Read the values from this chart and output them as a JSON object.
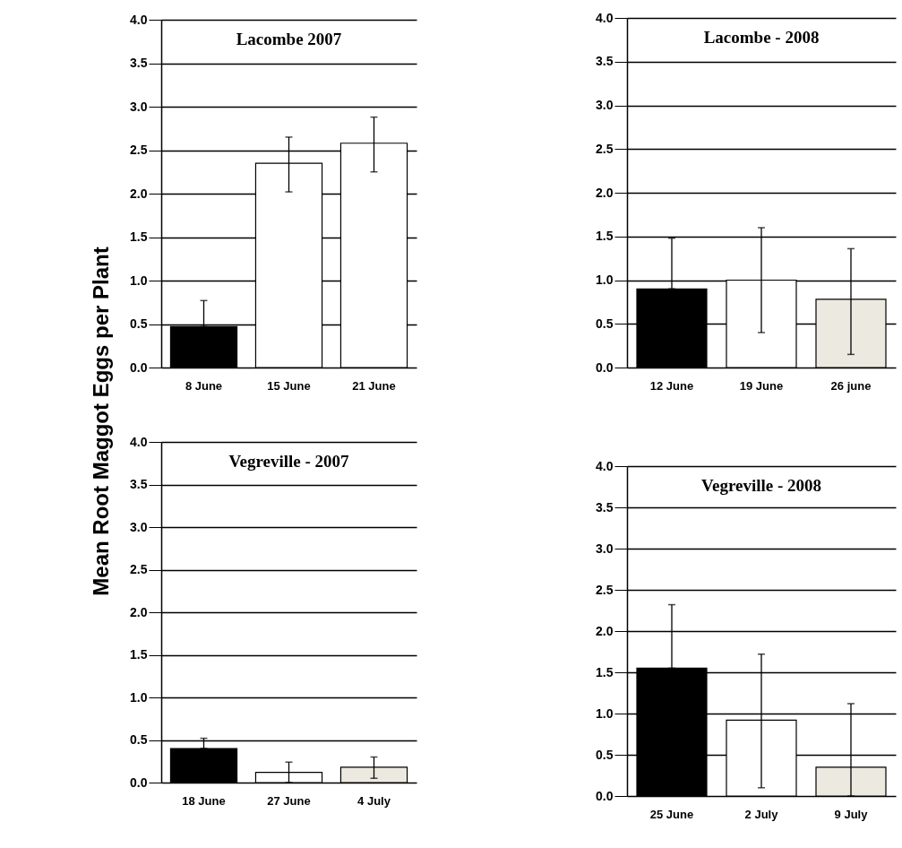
{
  "chart_data": [
    {
      "type": "bar",
      "title": "Lacombe 2007",
      "ylabel": "Mean Root Maggot Eggs per Plant",
      "categories": [
        "8 June",
        "15 June",
        "21 June"
      ],
      "values": [
        0.47,
        2.35,
        2.58
      ],
      "colors": [
        "#000000",
        "#ffffff",
        "#ffffff"
      ],
      "errors": [
        [
          0.47,
          0.77
        ],
        [
          2.02,
          2.65
        ],
        [
          2.25,
          2.88
        ]
      ],
      "ylim": [
        0,
        4
      ],
      "yticks": [
        {
          "value": 0,
          "label": "0.0"
        },
        {
          "value": 0.5,
          "label": "0.5"
        },
        {
          "value": 1,
          "label": "1.0"
        },
        {
          "value": 1.5,
          "label": "1.5"
        },
        {
          "value": 2,
          "label": "2.0"
        },
        {
          "value": 2.5,
          "label": "2.5"
        },
        {
          "value": 3,
          "label": "3.0"
        },
        {
          "value": 3.5,
          "label": "3.5"
        },
        {
          "value": 4,
          "label": "4.0"
        }
      ],
      "grid": "y"
    },
    {
      "type": "bar",
      "title": "Lacombe - 2008",
      "categories": [
        "12 June",
        "19 June",
        "26 june"
      ],
      "values": [
        0.9,
        1.0,
        0.78
      ],
      "colors": [
        "#000000",
        "#ffffff",
        "#ece9e0"
      ],
      "errors": [
        [
          0.9,
          1.48
        ],
        [
          0.4,
          1.6
        ],
        [
          0.15,
          1.36
        ]
      ],
      "ylim": [
        0,
        4
      ],
      "yticks": [
        {
          "value": 0,
          "label": "0.0"
        },
        {
          "value": 0.5,
          "label": "0.5"
        },
        {
          "value": 1,
          "label": "1.0"
        },
        {
          "value": 1.5,
          "label": "1.5"
        },
        {
          "value": 2,
          "label": "2.0"
        },
        {
          "value": 2.5,
          "label": "2.5"
        },
        {
          "value": 3,
          "label": "3.0"
        },
        {
          "value": 3.5,
          "label": "3.5"
        },
        {
          "value": 4,
          "label": "4.0"
        }
      ],
      "grid": "y"
    },
    {
      "type": "bar",
      "title": "Vegreville - 2007",
      "categories": [
        "18 June",
        "27 June",
        "4 July"
      ],
      "values": [
        0.4,
        0.12,
        0.18
      ],
      "colors": [
        "#000000",
        "#ffffff",
        "#ece9e0"
      ],
      "errors": [
        [
          0.4,
          0.52
        ],
        [
          0.0,
          0.24
        ],
        [
          0.05,
          0.3
        ]
      ],
      "ylim": [
        0,
        4
      ],
      "yticks": [
        {
          "value": 0,
          "label": "0.0"
        },
        {
          "value": 0.5,
          "label": "0.5"
        },
        {
          "value": 1,
          "label": "1.0"
        },
        {
          "value": 1.5,
          "label": "1.5"
        },
        {
          "value": 2,
          "label": "2.0"
        },
        {
          "value": 2.5,
          "label": "2.5"
        },
        {
          "value": 3,
          "label": "3.0"
        },
        {
          "value": 3.5,
          "label": "3.5"
        },
        {
          "value": 4,
          "label": "4.0"
        }
      ],
      "grid": "y"
    },
    {
      "type": "bar",
      "title": "Vegreville - 2008",
      "categories": [
        "25 June",
        "2 July",
        "9 July"
      ],
      "values": [
        1.55,
        0.92,
        0.35
      ],
      "colors": [
        "#000000",
        "#ffffff",
        "#ece9e0"
      ],
      "errors": [
        [
          1.55,
          2.32
        ],
        [
          0.1,
          1.72
        ],
        [
          0.0,
          1.12
        ]
      ],
      "ylim": [
        0,
        4
      ],
      "yticks": [
        {
          "value": 0,
          "label": "0.0"
        },
        {
          "value": 0.5,
          "label": "0.5"
        },
        {
          "value": 1,
          "label": "1.0"
        },
        {
          "value": 1.5,
          "label": "1.5"
        },
        {
          "value": 2,
          "label": "2.0"
        },
        {
          "value": 2.5,
          "label": "2.5"
        },
        {
          "value": 3,
          "label": "3.0"
        },
        {
          "value": 3.5,
          "label": "3.5"
        },
        {
          "value": 4,
          "label": "4.0"
        }
      ],
      "grid": "y"
    }
  ]
}
